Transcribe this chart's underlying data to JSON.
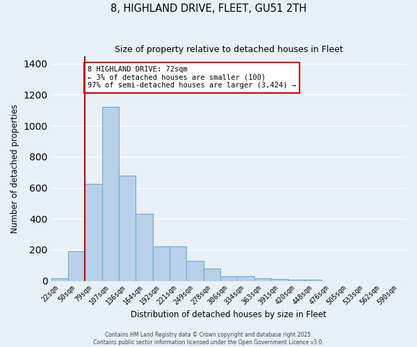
{
  "title1": "8, HIGHLAND DRIVE, FLEET, GU51 2TH",
  "title2": "Size of property relative to detached houses in Fleet",
  "xlabel": "Distribution of detached houses by size in Fleet",
  "ylabel": "Number of detached properties",
  "bar_labels": [
    "22sqm",
    "50sqm",
    "79sqm",
    "107sqm",
    "136sqm",
    "164sqm",
    "192sqm",
    "221sqm",
    "249sqm",
    "278sqm",
    "306sqm",
    "334sqm",
    "363sqm",
    "391sqm",
    "420sqm",
    "448sqm",
    "476sqm",
    "505sqm",
    "533sqm",
    "562sqm",
    "590sqm"
  ],
  "bar_heights": [
    15,
    190,
    625,
    1120,
    680,
    430,
    220,
    220,
    130,
    80,
    30,
    30,
    15,
    10,
    5,
    5,
    0,
    0,
    0,
    0,
    0
  ],
  "bar_color": "#b8d0e8",
  "bar_edge_color": "#6aaad4",
  "background_color": "#e8f0f8",
  "grid_color": "#ffffff",
  "red_line_index": 2,
  "annotation_text": "8 HIGHLAND DRIVE: 72sqm\n← 3% of detached houses are smaller (100)\n97% of semi-detached houses are larger (3,424) →",
  "annotation_box_color": "#ffffff",
  "annotation_box_edge_color": "#cc0000",
  "ylim": [
    0,
    1450
  ],
  "footer1": "Contains HM Land Registry data © Crown copyright and database right 2025.",
  "footer2": "Contains public sector information licensed under the Open Government Licence v3.0."
}
